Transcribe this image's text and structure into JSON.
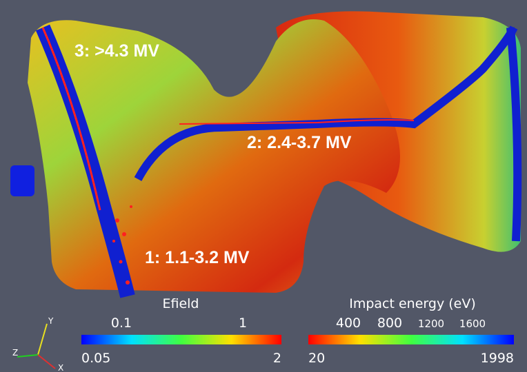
{
  "annotations": [
    "3: >4.3 MV",
    "2: 2.4-3.7 MV",
    "1: 1.1-3.2 MV"
  ],
  "efield_bar": {
    "title": "Efield",
    "ticks": [
      "0.1",
      "1"
    ],
    "min": "0.05",
    "max": "2"
  },
  "energy_bar": {
    "title": "Impact energy (eV)",
    "ticks": [
      "400",
      "800",
      "1200",
      "1600"
    ],
    "min": "20",
    "max": "1998"
  },
  "axes": {
    "x": "X",
    "y": "Y",
    "z": "Z"
  }
}
